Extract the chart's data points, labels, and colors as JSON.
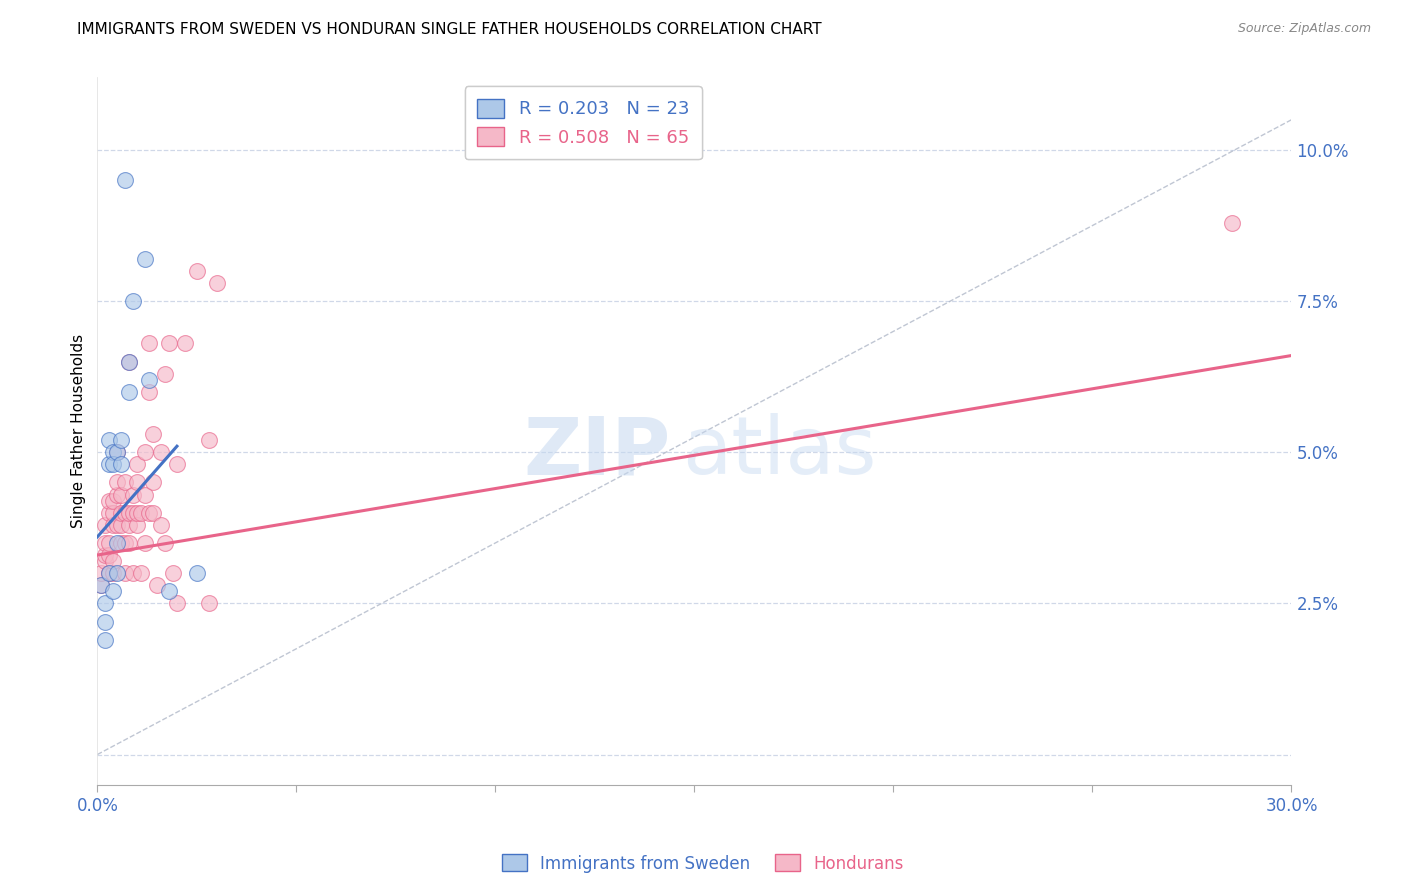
{
  "title": "IMMIGRANTS FROM SWEDEN VS HONDURAN SINGLE FATHER HOUSEHOLDS CORRELATION CHART",
  "source": "Source: ZipAtlas.com",
  "ylabel": "Single Father Households",
  "xlim": [
    0.0,
    0.3
  ],
  "ylim": [
    -0.005,
    0.112
  ],
  "xticks": [
    0.0,
    0.05,
    0.1,
    0.15,
    0.2,
    0.25,
    0.3
  ],
  "xticklabels": [
    "0.0%",
    "",
    "",
    "",
    "",
    "",
    "30.0%"
  ],
  "yticks": [
    0.0,
    0.025,
    0.05,
    0.075,
    0.1
  ],
  "yticklabels": [
    "",
    "2.5%",
    "5.0%",
    "7.5%",
    "10.0%"
  ],
  "legend1_label": "R = 0.203   N = 23",
  "legend2_label": "R = 0.508   N = 65",
  "color_sweden": "#adc8e8",
  "color_honduran": "#f5b8c8",
  "color_sweden_line": "#4472c4",
  "color_honduran_line": "#e8648a",
  "color_diag_line": "#b0b8c8",
  "color_axis_ticks": "#4472c4",
  "background_color": "#ffffff",
  "grid_color": "#d0d8e8",
  "sweden_scatter": [
    [
      0.001,
      0.028
    ],
    [
      0.002,
      0.025
    ],
    [
      0.002,
      0.022
    ],
    [
      0.002,
      0.019
    ],
    [
      0.003,
      0.052
    ],
    [
      0.003,
      0.048
    ],
    [
      0.003,
      0.03
    ],
    [
      0.004,
      0.05
    ],
    [
      0.004,
      0.048
    ],
    [
      0.004,
      0.027
    ],
    [
      0.005,
      0.05
    ],
    [
      0.005,
      0.03
    ],
    [
      0.005,
      0.035
    ],
    [
      0.006,
      0.052
    ],
    [
      0.006,
      0.048
    ],
    [
      0.007,
      0.095
    ],
    [
      0.008,
      0.06
    ],
    [
      0.008,
      0.065
    ],
    [
      0.009,
      0.075
    ],
    [
      0.012,
      0.082
    ],
    [
      0.013,
      0.062
    ],
    [
      0.018,
      0.027
    ],
    [
      0.025,
      0.03
    ]
  ],
  "honduran_scatter": [
    [
      0.001,
      0.028
    ],
    [
      0.001,
      0.03
    ],
    [
      0.002,
      0.032
    ],
    [
      0.002,
      0.033
    ],
    [
      0.002,
      0.035
    ],
    [
      0.002,
      0.038
    ],
    [
      0.003,
      0.03
    ],
    [
      0.003,
      0.033
    ],
    [
      0.003,
      0.04
    ],
    [
      0.003,
      0.042
    ],
    [
      0.003,
      0.035
    ],
    [
      0.004,
      0.03
    ],
    [
      0.004,
      0.032
    ],
    [
      0.004,
      0.038
    ],
    [
      0.004,
      0.04
    ],
    [
      0.004,
      0.042
    ],
    [
      0.005,
      0.038
    ],
    [
      0.005,
      0.043
    ],
    [
      0.005,
      0.045
    ],
    [
      0.005,
      0.05
    ],
    [
      0.006,
      0.035
    ],
    [
      0.006,
      0.038
    ],
    [
      0.006,
      0.04
    ],
    [
      0.006,
      0.043
    ],
    [
      0.007,
      0.03
    ],
    [
      0.007,
      0.035
    ],
    [
      0.007,
      0.04
    ],
    [
      0.007,
      0.045
    ],
    [
      0.008,
      0.035
    ],
    [
      0.008,
      0.038
    ],
    [
      0.008,
      0.04
    ],
    [
      0.008,
      0.065
    ],
    [
      0.009,
      0.03
    ],
    [
      0.009,
      0.04
    ],
    [
      0.009,
      0.043
    ],
    [
      0.01,
      0.038
    ],
    [
      0.01,
      0.04
    ],
    [
      0.01,
      0.045
    ],
    [
      0.01,
      0.048
    ],
    [
      0.011,
      0.03
    ],
    [
      0.011,
      0.04
    ],
    [
      0.012,
      0.035
    ],
    [
      0.012,
      0.043
    ],
    [
      0.012,
      0.05
    ],
    [
      0.013,
      0.04
    ],
    [
      0.013,
      0.06
    ],
    [
      0.013,
      0.068
    ],
    [
      0.014,
      0.04
    ],
    [
      0.014,
      0.045
    ],
    [
      0.014,
      0.053
    ],
    [
      0.015,
      0.028
    ],
    [
      0.016,
      0.038
    ],
    [
      0.016,
      0.05
    ],
    [
      0.017,
      0.035
    ],
    [
      0.017,
      0.063
    ],
    [
      0.018,
      0.068
    ],
    [
      0.019,
      0.03
    ],
    [
      0.02,
      0.025
    ],
    [
      0.02,
      0.048
    ],
    [
      0.022,
      0.068
    ],
    [
      0.025,
      0.08
    ],
    [
      0.028,
      0.025
    ],
    [
      0.028,
      0.052
    ],
    [
      0.03,
      0.078
    ],
    [
      0.285,
      0.088
    ]
  ],
  "sweden_line_x": [
    0.0,
    0.02
  ],
  "sweden_line_y": [
    0.036,
    0.051
  ],
  "honduran_line_x": [
    0.0,
    0.3
  ],
  "honduran_line_y": [
    0.033,
    0.066
  ],
  "diag_line_x": [
    0.0,
    0.3
  ],
  "diag_line_y": [
    0.0,
    0.105
  ]
}
